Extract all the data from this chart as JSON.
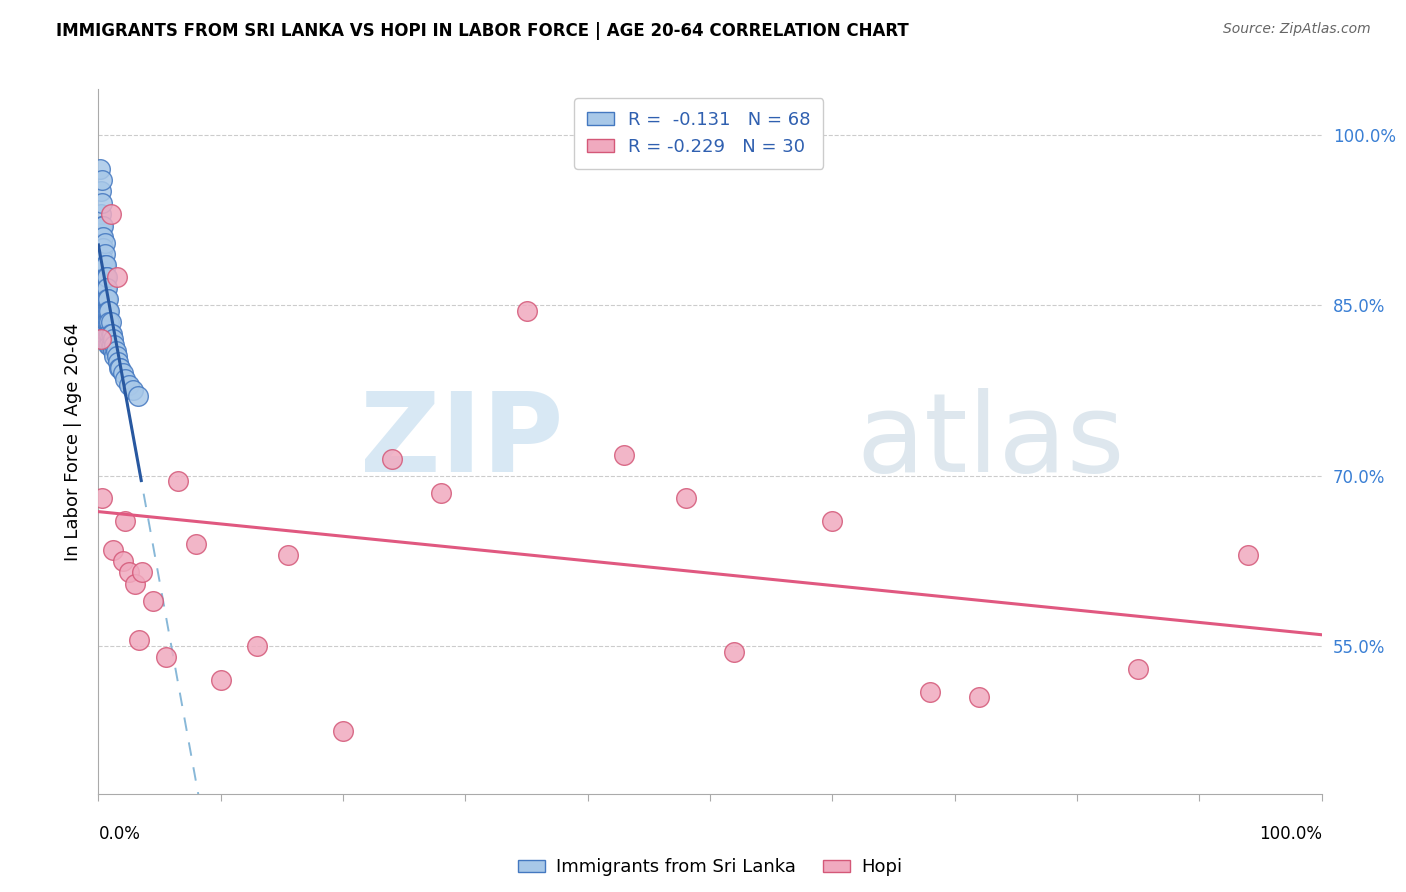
{
  "title": "IMMIGRANTS FROM SRI LANKA VS HOPI IN LABOR FORCE | AGE 20-64 CORRELATION CHART",
  "source": "Source: ZipAtlas.com",
  "ylabel": "In Labor Force | Age 20-64",
  "ytick_values": [
    1.0,
    0.85,
    0.7,
    0.55
  ],
  "ytick_labels": [
    "100.0%",
    "85.0%",
    "70.0%",
    "55.0%"
  ],
  "xlim": [
    0.0,
    1.0
  ],
  "ylim": [
    0.42,
    1.04
  ],
  "sri_lanka_fill": "#a8c8e8",
  "sri_lanka_edge": "#4478c0",
  "hopi_fill": "#f0aabf",
  "hopi_edge": "#d45878",
  "trend_sri_solid": "#2858a0",
  "trend_sri_dashed": "#88b8d8",
  "trend_hopi_solid": "#e05880",
  "R_sri": -0.131,
  "N_sri": 68,
  "R_hopi": -0.229,
  "N_hopi": 30,
  "sri_lanka_x": [
    0.001,
    0.002,
    0.002,
    0.002,
    0.003,
    0.003,
    0.003,
    0.003,
    0.003,
    0.003,
    0.003,
    0.004,
    0.004,
    0.004,
    0.004,
    0.004,
    0.004,
    0.004,
    0.004,
    0.004,
    0.005,
    0.005,
    0.005,
    0.005,
    0.005,
    0.005,
    0.005,
    0.005,
    0.005,
    0.006,
    0.006,
    0.006,
    0.006,
    0.006,
    0.007,
    0.007,
    0.007,
    0.007,
    0.007,
    0.007,
    0.008,
    0.008,
    0.008,
    0.008,
    0.008,
    0.009,
    0.009,
    0.009,
    0.009,
    0.01,
    0.01,
    0.01,
    0.011,
    0.011,
    0.012,
    0.012,
    0.013,
    0.013,
    0.014,
    0.015,
    0.016,
    0.017,
    0.018,
    0.02,
    0.022,
    0.025,
    0.028,
    0.032
  ],
  "sri_lanka_y": [
    0.97,
    0.95,
    0.93,
    0.91,
    0.96,
    0.94,
    0.92,
    0.91,
    0.9,
    0.89,
    0.875,
    0.92,
    0.91,
    0.9,
    0.89,
    0.88,
    0.87,
    0.86,
    0.85,
    0.84,
    0.905,
    0.895,
    0.885,
    0.875,
    0.865,
    0.855,
    0.845,
    0.835,
    0.825,
    0.885,
    0.875,
    0.865,
    0.855,
    0.845,
    0.875,
    0.865,
    0.855,
    0.845,
    0.835,
    0.825,
    0.855,
    0.845,
    0.835,
    0.825,
    0.815,
    0.845,
    0.835,
    0.825,
    0.815,
    0.835,
    0.825,
    0.815,
    0.825,
    0.815,
    0.82,
    0.81,
    0.815,
    0.805,
    0.81,
    0.805,
    0.8,
    0.795,
    0.795,
    0.79,
    0.785,
    0.78,
    0.775,
    0.77
  ],
  "hopi_x": [
    0.002,
    0.003,
    0.01,
    0.012,
    0.015,
    0.02,
    0.022,
    0.025,
    0.03,
    0.033,
    0.036,
    0.045,
    0.055,
    0.065,
    0.08,
    0.1,
    0.13,
    0.155,
    0.2,
    0.24,
    0.28,
    0.35,
    0.43,
    0.48,
    0.52,
    0.6,
    0.68,
    0.72,
    0.85,
    0.94
  ],
  "hopi_y": [
    0.82,
    0.68,
    0.93,
    0.635,
    0.875,
    0.625,
    0.66,
    0.615,
    0.605,
    0.555,
    0.615,
    0.59,
    0.54,
    0.695,
    0.64,
    0.52,
    0.55,
    0.63,
    0.475,
    0.715,
    0.685,
    0.845,
    0.718,
    0.68,
    0.545,
    0.66,
    0.51,
    0.505,
    0.53,
    0.63
  ]
}
